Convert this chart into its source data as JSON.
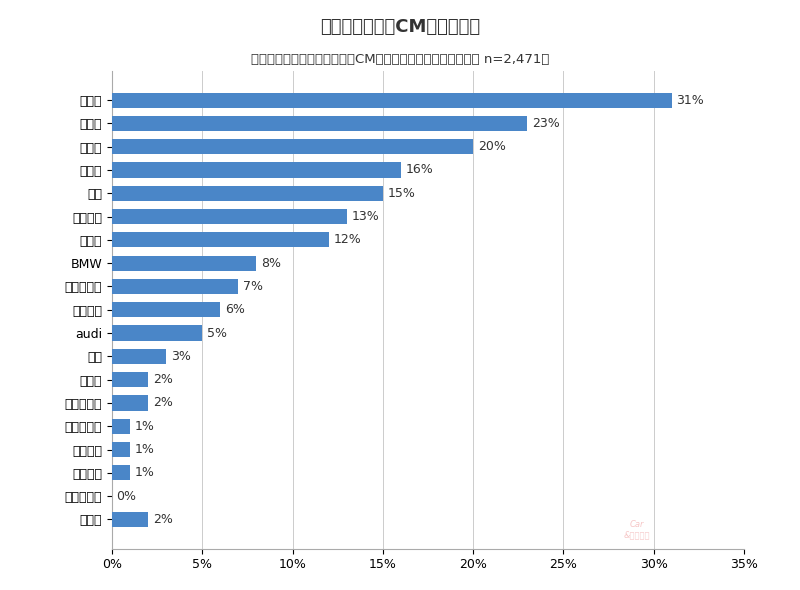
{
  "title": "好きなクルマのCMのメーカー",
  "subtitle": "（複数選択／好きなクルマのCMが「ある」と回答した方のみ n=2,471）",
  "categories": [
    "トヨタ",
    "スバル",
    "ホンダ",
    "マツダ",
    "日産",
    "ダイハツ",
    "スズキ",
    "BMW",
    "メルセデス",
    "レクサス",
    "audi",
    "三菱",
    "ボルボ",
    "フォルクス",
    "フィアット",
    "プジョー",
    "ジャガー",
    "フェラーリ",
    "その他"
  ],
  "values": [
    31,
    23,
    20,
    16,
    15,
    13,
    12,
    8,
    7,
    6,
    5,
    3,
    2,
    2,
    1,
    1,
    1,
    0,
    2
  ],
  "bar_color": "#4a86c8",
  "label_color": "#333333",
  "background_color": "#ffffff",
  "xlim": [
    0,
    35
  ],
  "xticks": [
    0,
    5,
    10,
    15,
    20,
    25,
    30,
    35
  ],
  "title_fontsize": 13,
  "subtitle_fontsize": 9.5,
  "tick_fontsize": 9,
  "bar_label_fontsize": 9
}
